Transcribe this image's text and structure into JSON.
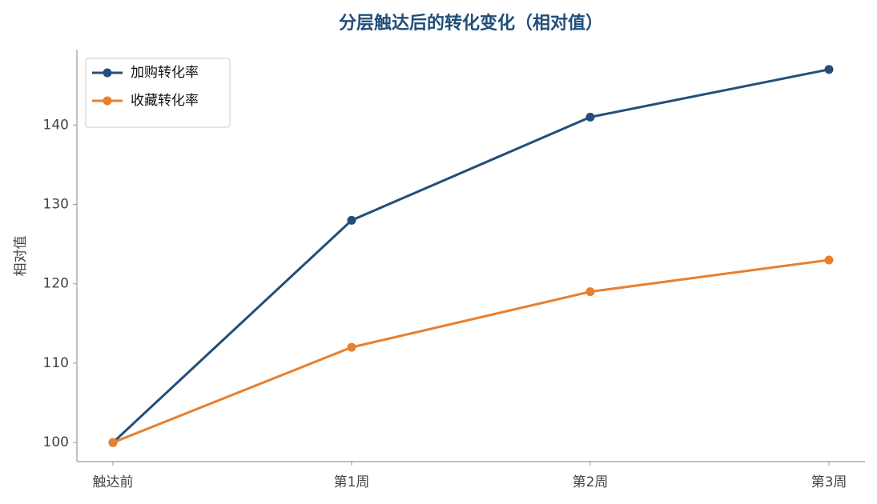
{
  "chart_data": {
    "type": "line",
    "title": "分层触达后的转化变化（相对值）",
    "y_label": "相对值",
    "categories": [
      "触达前",
      "第1周",
      "第2周",
      "第3周"
    ],
    "series": [
      {
        "name": "加购转化率",
        "color": "#234e79",
        "values": [
          100,
          128,
          141,
          147
        ]
      },
      {
        "name": "收藏转化率",
        "color": "#e8802f",
        "values": [
          100,
          112,
          119,
          123
        ]
      }
    ],
    "ylim": [
      97.6,
      149.5
    ],
    "yticks": [
      100,
      110,
      120,
      130,
      140
    ],
    "grid": false,
    "legend": "upper-left"
  }
}
